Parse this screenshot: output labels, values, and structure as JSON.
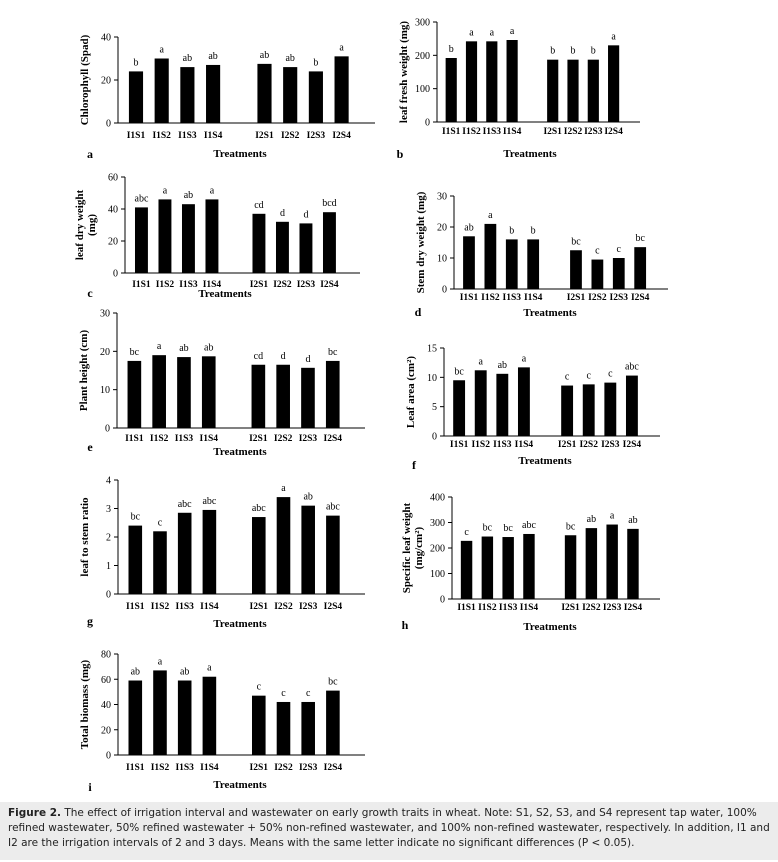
{
  "chart_data": [
    {
      "type": "bar",
      "panel": "a",
      "ylabel": [
        "Chlorophyll (Spad)"
      ],
      "xlabel": "Treatments",
      "categories": [
        "I1S1",
        "I1S2",
        "I1S3",
        "I1S4",
        "I2S1",
        "I2S2",
        "I2S3",
        "I2S4"
      ],
      "values": [
        24,
        30,
        26,
        27,
        27.5,
        26,
        24,
        31
      ],
      "letters": [
        "b",
        "a",
        "ab",
        "ab",
        "ab",
        "ab",
        "b",
        "a"
      ],
      "ylim": [
        0,
        40
      ],
      "yticks": [
        0,
        20,
        40
      ],
      "color": "#000000"
    },
    {
      "type": "bar",
      "panel": "b",
      "ylabel": [
        "leaf fresh weight (mg)"
      ],
      "xlabel": "Treatments",
      "categories": [
        "I1S1",
        "I1S2",
        "I1S3",
        "I1S4",
        "I2S1",
        "I2S2",
        "I2S3",
        "I2S4"
      ],
      "values": [
        192,
        242,
        242,
        246,
        187,
        187,
        187,
        230
      ],
      "letters": [
        "b",
        "a",
        "a",
        "a",
        "b",
        "b",
        "b",
        "a"
      ],
      "ylim": [
        0,
        300
      ],
      "yticks": [
        0,
        100,
        200,
        300
      ],
      "color": "#000000"
    },
    {
      "type": "bar",
      "panel": "c",
      "ylabel": [
        "leaf dry weight",
        "(mg)"
      ],
      "xlabel": "Treatments",
      "categories": [
        "I1S1",
        "I1S2",
        "I1S3",
        "I1S4",
        "I2S1",
        "I2S2",
        "I2S3",
        "I2S4"
      ],
      "values": [
        41,
        46,
        43,
        46,
        37,
        32,
        31,
        38
      ],
      "letters": [
        "abc",
        "a",
        "ab",
        "a",
        "cd",
        "d",
        "d",
        "bcd"
      ],
      "ylim": [
        0,
        60
      ],
      "yticks": [
        0,
        20,
        40,
        60
      ],
      "color": "#000000"
    },
    {
      "type": "bar",
      "panel": "d",
      "ylabel": [
        "Stem dry weight (mg)"
      ],
      "xlabel": "Treatments",
      "categories": [
        "I1S1",
        "I1S2",
        "I1S3",
        "I1S4",
        "I2S1",
        "I2S2",
        "I2S3",
        "I2S4"
      ],
      "values": [
        17,
        21,
        16,
        16,
        12.5,
        9.5,
        10,
        13.5
      ],
      "letters": [
        "ab",
        "a",
        "b",
        "b",
        "bc",
        "c",
        "c",
        "bc"
      ],
      "ylim": [
        0,
        30
      ],
      "yticks": [
        0,
        10,
        20,
        30
      ],
      "color": "#000000"
    },
    {
      "type": "bar",
      "panel": "e",
      "ylabel": [
        "Plant height (cm)"
      ],
      "xlabel": "Treatments",
      "categories": [
        "I1S1",
        "I1S2",
        "I1S3",
        "I1S4",
        "I2S1",
        "I2S2",
        "I2S3",
        "I2S4"
      ],
      "values": [
        17.5,
        19,
        18.5,
        18.7,
        16.5,
        16.5,
        15.7,
        17.5
      ],
      "letters": [
        "bc",
        "a",
        "ab",
        "ab",
        "cd",
        "d",
        "d",
        "bc"
      ],
      "ylim": [
        0,
        30
      ],
      "yticks": [
        0,
        10,
        20,
        30
      ],
      "color": "#000000"
    },
    {
      "type": "bar",
      "panel": "f",
      "ylabel": [
        "Leaf area (cm²)"
      ],
      "xlabel": "Treatments",
      "categories": [
        "I1S1",
        "I1S2",
        "I1S3",
        "I1S4",
        "I2S1",
        "I2S2",
        "I2S3",
        "I2S4"
      ],
      "values": [
        9.5,
        11.2,
        10.6,
        11.7,
        8.6,
        8.8,
        9.1,
        10.3
      ],
      "letters": [
        "bc",
        "a",
        "ab",
        "a",
        "c",
        "c",
        "c",
        "abc"
      ],
      "ylim": [
        0,
        15
      ],
      "yticks": [
        0,
        5,
        10,
        15
      ],
      "color": "#000000"
    },
    {
      "type": "bar",
      "panel": "g",
      "ylabel": [
        "leaf to stem ratio"
      ],
      "xlabel": "Treatments",
      "categories": [
        "I1S1",
        "I1S2",
        "I1S3",
        "I1S4",
        "I2S1",
        "I2S2",
        "I2S3",
        "I2S4"
      ],
      "values": [
        2.4,
        2.2,
        2.85,
        2.95,
        2.7,
        3.4,
        3.1,
        2.75
      ],
      "letters": [
        "bc",
        "c",
        "abc",
        "abc",
        "abc",
        "a",
        "ab",
        "abc"
      ],
      "ylim": [
        0,
        4
      ],
      "yticks": [
        0,
        1,
        2,
        3,
        4
      ],
      "color": "#000000"
    },
    {
      "type": "bar",
      "panel": "h",
      "ylabel": [
        "Specific leaf weight",
        "(mg/cm²)"
      ],
      "xlabel": "Treatments",
      "categories": [
        "I1S1",
        "I1S2",
        "I1S3",
        "I1S4",
        "I2S1",
        "I2S2",
        "I2S3",
        "I2S4"
      ],
      "values": [
        228,
        245,
        243,
        255,
        250,
        278,
        292,
        275
      ],
      "letters": [
        "c",
        "bc",
        "bc",
        "abc",
        "bc",
        "ab",
        "a",
        "ab"
      ],
      "ylim": [
        0,
        400
      ],
      "yticks": [
        0,
        100,
        200,
        300,
        400
      ],
      "color": "#000000"
    },
    {
      "type": "bar",
      "panel": "i",
      "ylabel": [
        "Total biomass (mg)"
      ],
      "xlabel": "Treatments",
      "categories": [
        "I1S1",
        "I1S2",
        "I1S3",
        "I1S4",
        "I2S1",
        "I2S2",
        "I2S3",
        "I2S4"
      ],
      "values": [
        59,
        67,
        59,
        62,
        47,
        42,
        42,
        51
      ],
      "letters": [
        "ab",
        "a",
        "ab",
        "a",
        "c",
        "c",
        "c",
        "bc"
      ],
      "ylim": [
        0,
        80
      ],
      "yticks": [
        0,
        20,
        40,
        60,
        80
      ],
      "color": "#000000"
    }
  ],
  "caption_label": "Figure 2.",
  "caption": "The effect of irrigation interval and wastewater on early growth traits in wheat. Note: S1, S2, S3, and S4 represent tap water, 100% refined wastewater, 50% refined wastewater + 50% non-refined wastewater, and 100% non-refined wastewater, respectively. In addition, I1 and I2 are the irrigation intervals of 2 and 3 days. Means with the same letter indicate no significant differences (P < 0.05)."
}
